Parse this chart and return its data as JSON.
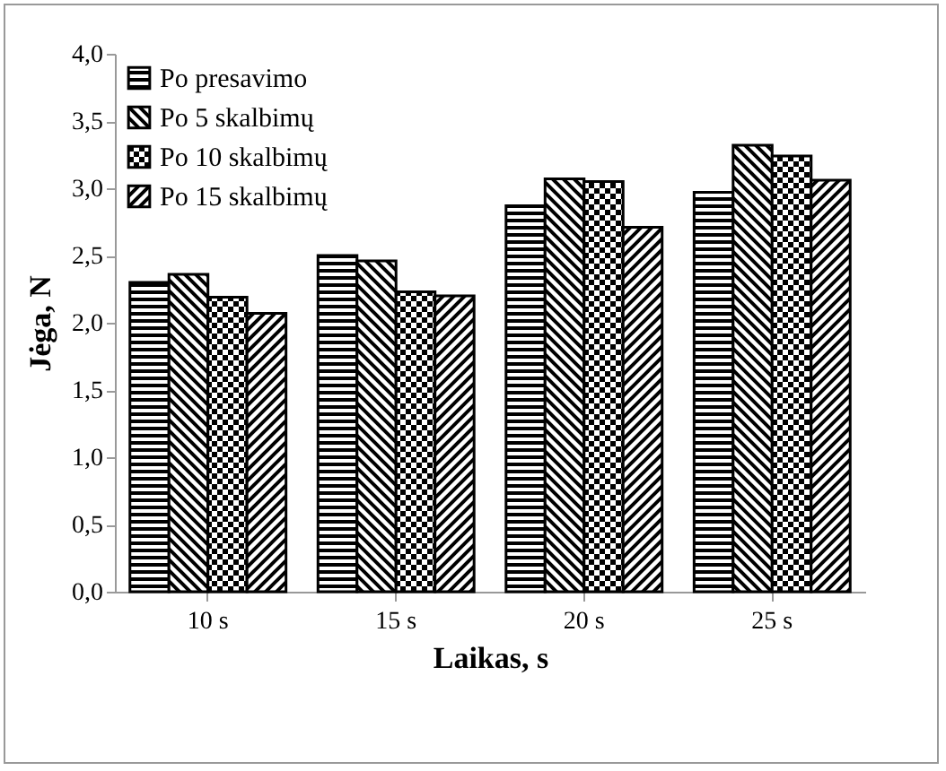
{
  "chart_data": {
    "type": "bar",
    "xlabel": "Laikas, s",
    "ylabel": "Jėga, N",
    "categories": [
      "10 s",
      "15 s",
      "20 s",
      "25 s"
    ],
    "series": [
      {
        "name": "Po presavimo",
        "color": "#000000",
        "values": [
          2.3,
          2.5,
          2.87,
          2.97
        ]
      },
      {
        "name": "Po 5 skalbimų",
        "color": "#000000",
        "values": [
          2.36,
          2.46,
          3.07,
          3.32
        ]
      },
      {
        "name": "Po 10 skalbimų",
        "color": "#000000",
        "values": [
          2.19,
          2.23,
          3.05,
          3.24
        ]
      },
      {
        "name": "Po 15 skalbimų",
        "color": "#000000",
        "values": [
          2.07,
          2.2,
          2.71,
          3.06
        ]
      }
    ],
    "ylim": [
      0,
      4
    ],
    "yticks": [
      {
        "value": 0,
        "label": "0,0"
      },
      {
        "value": 0.5,
        "label": "0,5"
      },
      {
        "value": 1,
        "label": "1,0"
      },
      {
        "value": 1.5,
        "label": "1,5"
      },
      {
        "value": 2,
        "label": "2,0"
      },
      {
        "value": 2.5,
        "label": "2,5"
      },
      {
        "value": 3,
        "label": "3,0"
      },
      {
        "value": 3.5,
        "label": "3,5"
      },
      {
        "value": 4,
        "label": "4,0"
      }
    ],
    "grid": false,
    "legend": "top left"
  }
}
